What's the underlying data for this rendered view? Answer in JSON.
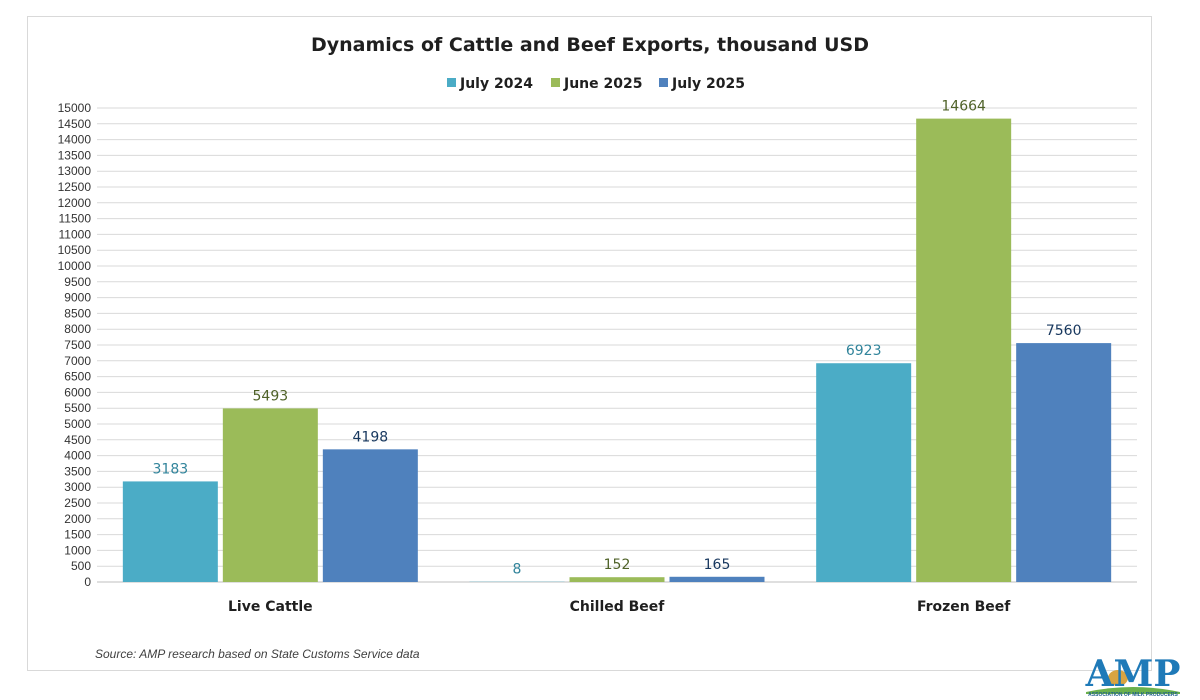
{
  "chart_data": {
    "type": "bar",
    "title": "Dynamics of Cattle and Beef Exports, thousand USD",
    "categories": [
      "Live Cattle",
      "Chilled Beef",
      "Frozen Beef"
    ],
    "series": [
      {
        "name": "July 2024",
        "values": [
          3183,
          8,
          6923
        ],
        "color": "#4bacc6",
        "label_color": "#31849b"
      },
      {
        "name": "June 2025",
        "values": [
          5493,
          152,
          14664
        ],
        "color": "#9bbb59",
        "label_color": "#4f6228"
      },
      {
        "name": "July 2025",
        "values": [
          4198,
          165,
          7560
        ],
        "color": "#4f81bd",
        "label_color": "#17375e"
      }
    ],
    "ylim": [
      0,
      15000
    ],
    "ytick_step": 500,
    "grid": true,
    "legend": "top",
    "xlabel": "",
    "ylabel": ""
  },
  "source": "Source: AMP research based on State Customs Service data",
  "logo": {
    "text": "AMP",
    "subtitle": "ASSOCIATION OF MILK PRODUCERS"
  }
}
